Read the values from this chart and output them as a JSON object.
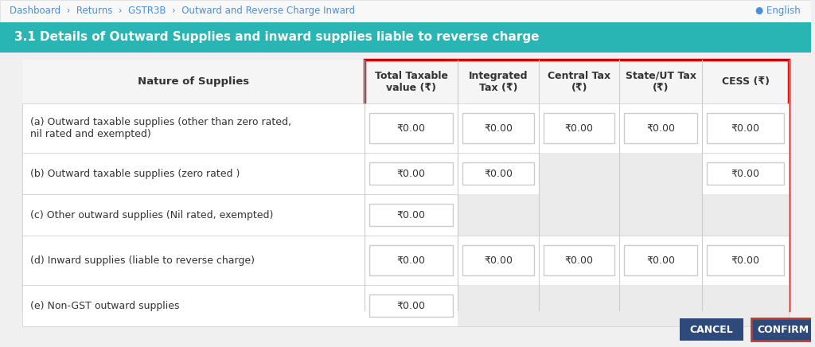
{
  "breadcrumb_text": "Dashboard  ›  Returns  ›  GSTR3B  ›  Outward and Reverse Charge Inward",
  "breadcrumb_color": "#4a90d9",
  "breadcrumb_separator_color": "#666666",
  "english_text": "● English",
  "teal_header": "3.1 Details of Outward Supplies and inward supplies liable to reverse charge",
  "teal_color": "#2ab5b5",
  "teal_text_color": "#ffffff",
  "bg_color": "#f0f0f0",
  "table_bg": "#ffffff",
  "header_row_bg": "#f5f5f5",
  "col_headers": [
    "Nature of Supplies",
    "Total Taxable\nvalue (₹)",
    "Integrated\nTax (₹)",
    "Central Tax\n(₹)",
    "State/UT Tax\n(₹)",
    "CESS (₹)"
  ],
  "rows": [
    {
      "label": "(a) Outward taxable supplies (other than zero rated,\nnil rated and exempted)",
      "cells": [
        "₹0.00",
        "₹0.00",
        "₹0.00",
        "₹0.00",
        "₹0.00"
      ],
      "active": [
        true,
        true,
        true,
        true,
        true
      ]
    },
    {
      "label": "(b) Outward taxable supplies (zero rated )",
      "cells": [
        "₹0.00",
        "₹0.00",
        "",
        "",
        "₹0.00"
      ],
      "active": [
        true,
        true,
        false,
        false,
        true
      ]
    },
    {
      "label": "(c) Other outward supplies (Nil rated, exempted)",
      "cells": [
        "₹0.00",
        "",
        "",
        "",
        ""
      ],
      "active": [
        true,
        false,
        false,
        false,
        false
      ]
    },
    {
      "label": "(d) Inward supplies (liable to reverse charge)",
      "cells": [
        "₹0.00",
        "₹0.00",
        "₹0.00",
        "₹0.00",
        "₹0.00"
      ],
      "active": [
        true,
        true,
        true,
        true,
        true
      ]
    },
    {
      "label": "(e) Non-GST outward supplies",
      "cells": [
        "₹0.00",
        "",
        "",
        "",
        ""
      ],
      "active": [
        true,
        false,
        false,
        false,
        false
      ]
    }
  ],
  "cancel_btn_color": "#2d4a7a",
  "confirm_btn_color": "#8b1a1a",
  "confirm_btn_border": "#c0392b",
  "button_text_color": "#ffffff",
  "red_border_color": "#cc0000",
  "cell_border_color": "#cccccc",
  "input_bg": "#ffffff",
  "disabled_bg": "#ebebeb",
  "label_color": "#333333",
  "header_text_color": "#333333",
  "top_bar_bg": "#f8f8f8",
  "top_bar_border": "#dddddd"
}
